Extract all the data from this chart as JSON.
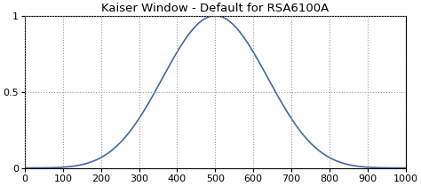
{
  "title": "Kaiser Window - Default for RSA6100A",
  "xlim": [
    0,
    1000
  ],
  "ylim": [
    0,
    1
  ],
  "xticks": [
    0,
    100,
    200,
    300,
    400,
    500,
    600,
    700,
    800,
    900,
    1000
  ],
  "yticks": [
    0,
    0.5,
    1
  ],
  "ytick_labels": [
    "0",
    "0.5",
    "1"
  ],
  "line_color": "#4466aa",
  "line_width": 1.2,
  "grid_color": "#999999",
  "grid_style": ":",
  "background_color": "#ffffff",
  "n_points": 1001,
  "kaiser_beta": 14.0,
  "title_fontsize": 9.5,
  "tick_fontsize": 8
}
